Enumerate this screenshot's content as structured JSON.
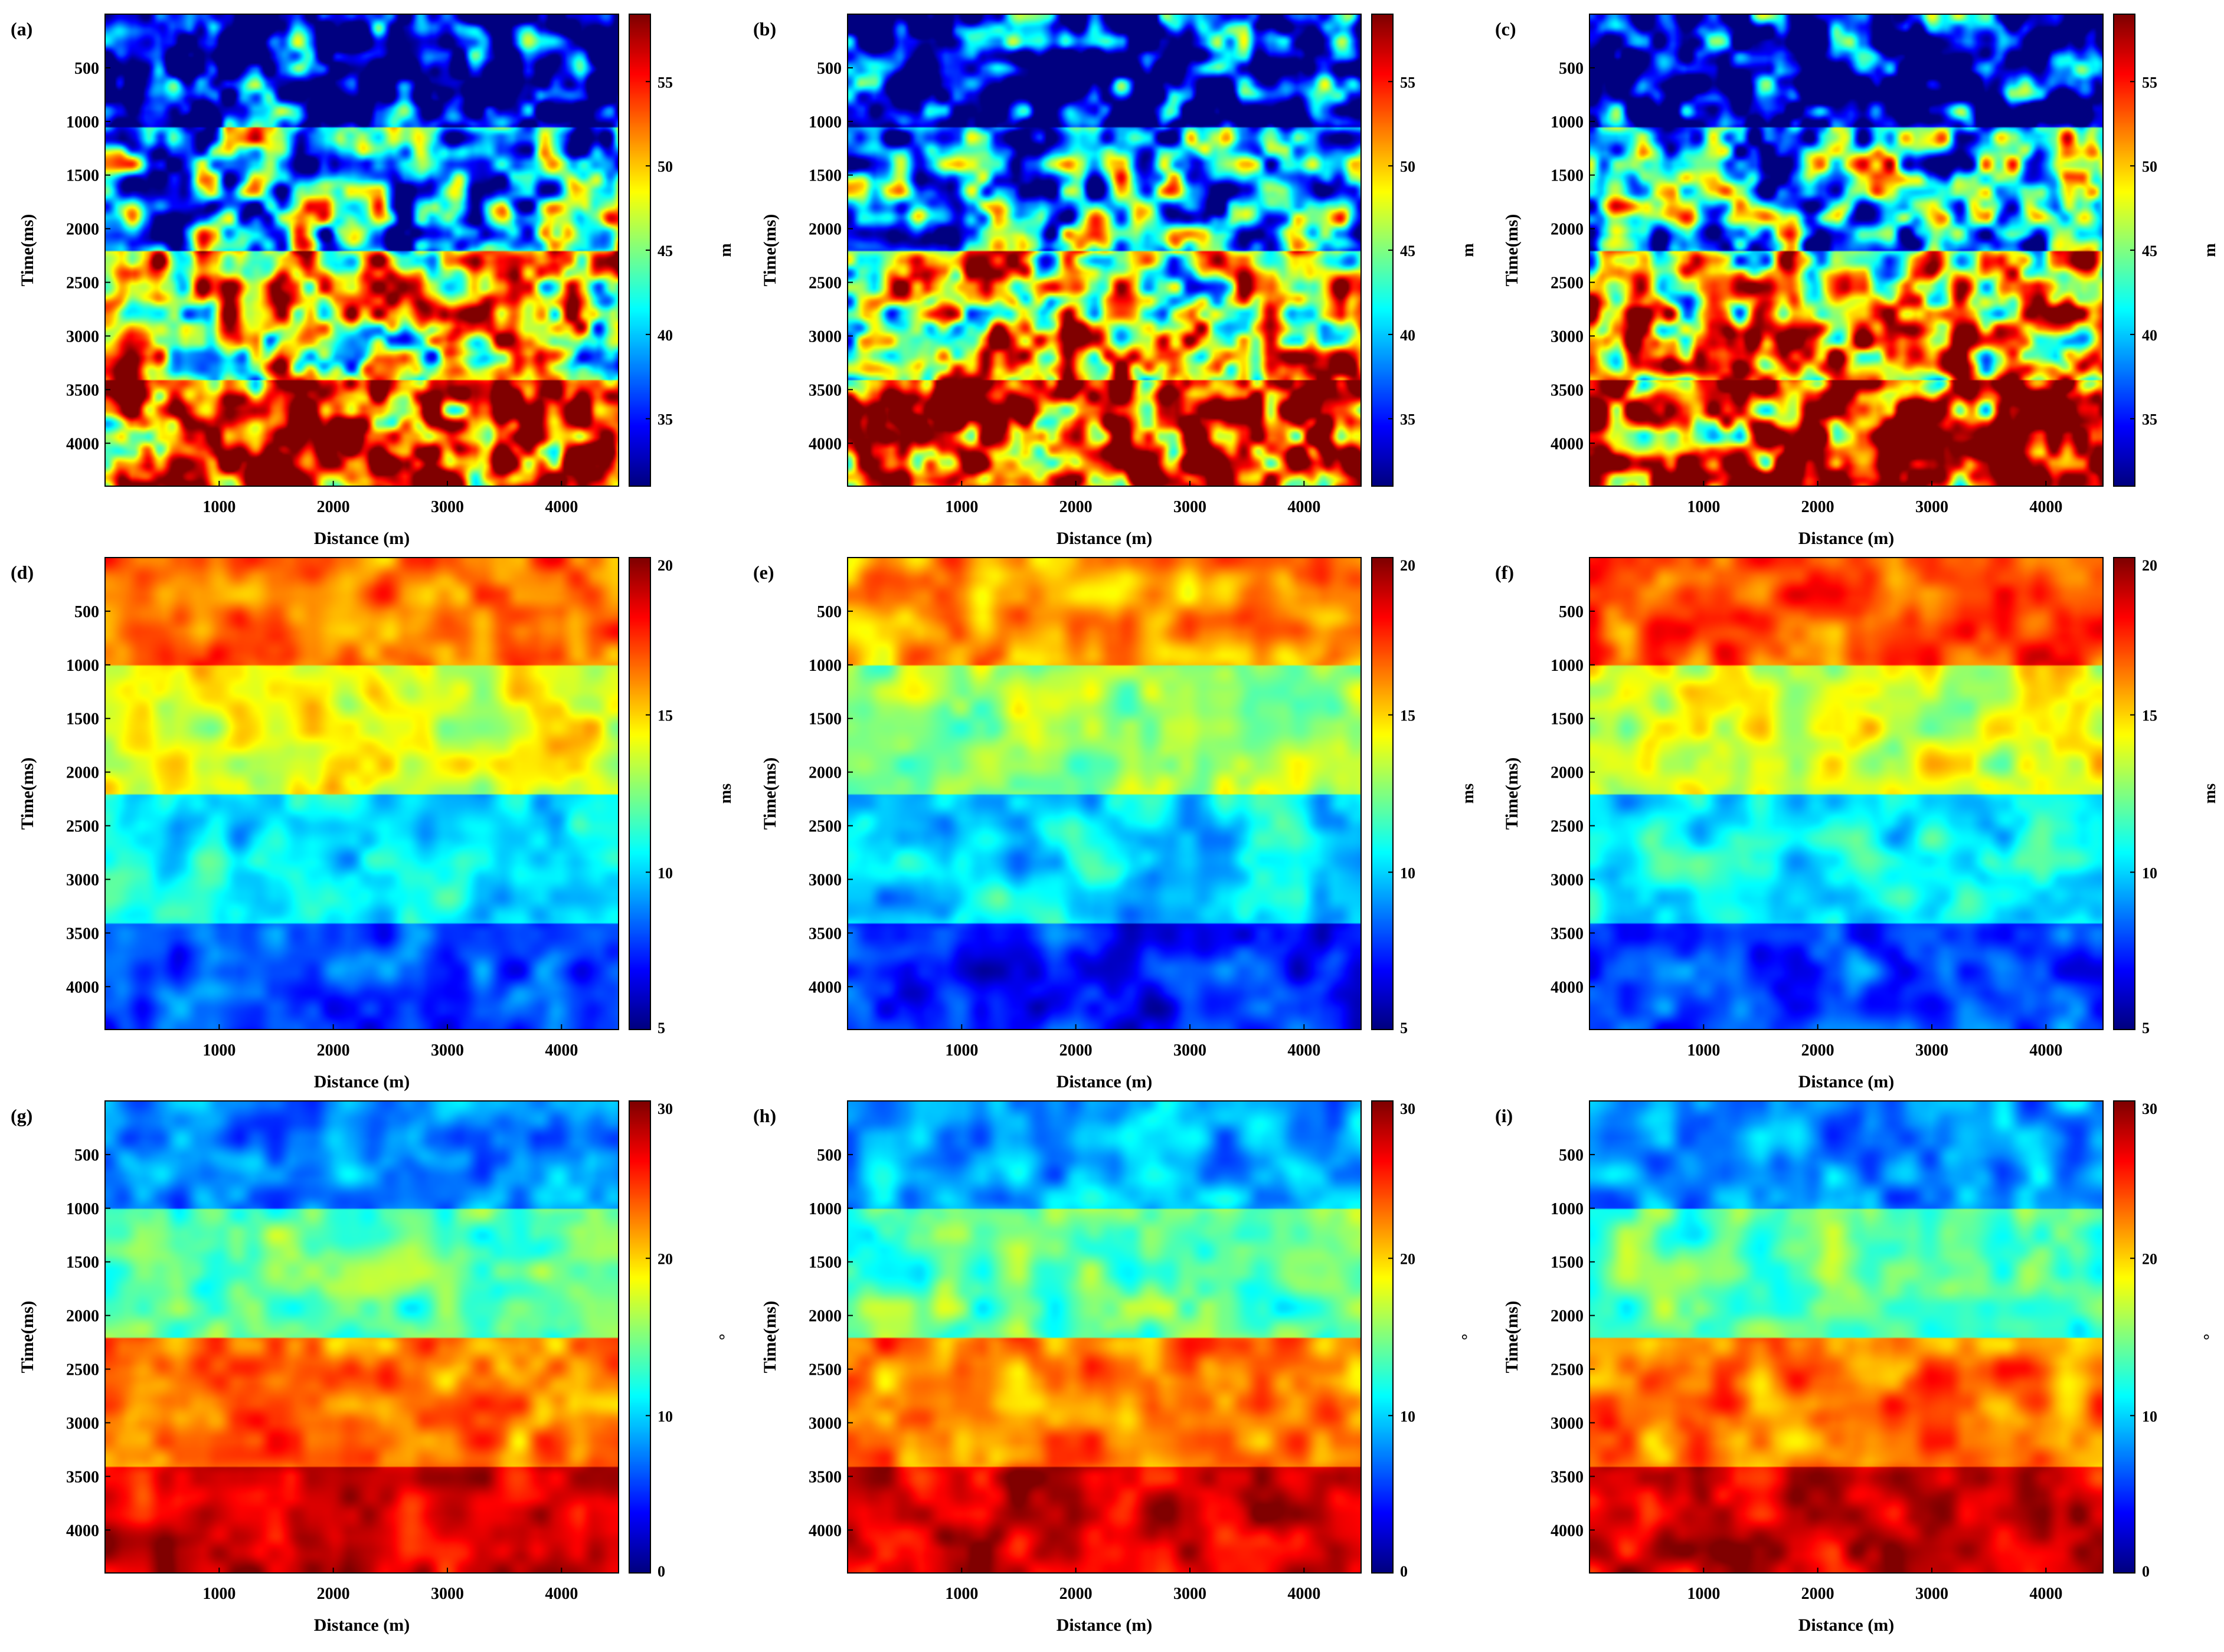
{
  "figure": {
    "panels": [
      {
        "letter": "(a)",
        "ylabel": "Time(ms)",
        "xlabel": "Distance (m)",
        "cbar_ticks": [
          "35",
          "40",
          "45",
          "50",
          "55"
        ],
        "cbar_unit": "m",
        "cbar_range": [
          31,
          59
        ],
        "bands": [
          32,
          38,
          45,
          52,
          56
        ],
        "noise": 12,
        "cell": 42,
        "seed": 11
      },
      {
        "letter": "(b)",
        "ylabel": "Time(ms)",
        "xlabel": "Distance (m)",
        "cbar_ticks": [
          "35",
          "40",
          "45",
          "50",
          "55"
        ],
        "cbar_unit": "m",
        "cbar_range": [
          31,
          59
        ],
        "bands": [
          32,
          37.5,
          44,
          51,
          56
        ],
        "noise": 12,
        "cell": 42,
        "seed": 23
      },
      {
        "letter": "(c)",
        "ylabel": "Time(ms)",
        "xlabel": "Distance (m)",
        "cbar_ticks": [
          "35",
          "40",
          "45",
          "50",
          "55"
        ],
        "cbar_unit": "m",
        "cbar_range": [
          31,
          59
        ],
        "bands": [
          32,
          38,
          45,
          52,
          56
        ],
        "noise": 12,
        "cell": 42,
        "seed": 37
      },
      {
        "letter": "(d)",
        "ylabel": "Time(ms)",
        "xlabel": "Distance (m)",
        "cbar_ticks": [
          "5",
          "10",
          "15",
          "20"
        ],
        "cbar_unit": "ms",
        "cbar_range": [
          5,
          20
        ],
        "bands": [
          16.5,
          14.0,
          10.5,
          8.0
        ],
        "noise": 1.4,
        "cell": 58,
        "seed": 41
      },
      {
        "letter": "(e)",
        "ylabel": "Time(ms)",
        "xlabel": "Distance (m)",
        "cbar_ticks": [
          "5",
          "10",
          "15",
          "20"
        ],
        "cbar_unit": "ms",
        "cbar_range": [
          5,
          20
        ],
        "bands": [
          15.8,
          13.0,
          10.2,
          7.3
        ],
        "noise": 1.4,
        "cell": 58,
        "seed": 53
      },
      {
        "letter": "(f)",
        "ylabel": "Time(ms)",
        "xlabel": "Distance (m)",
        "cbar_ticks": [
          "5",
          "10",
          "15",
          "20"
        ],
        "cbar_unit": "ms",
        "cbar_range": [
          5,
          20
        ],
        "bands": [
          17.0,
          14.0,
          10.5,
          7.9
        ],
        "noise": 1.4,
        "cell": 58,
        "seed": 67
      },
      {
        "letter": "(g)",
        "ylabel": "Time(ms)",
        "xlabel": "Distance (m)",
        "cbar_ticks": [
          "0",
          "10",
          "20",
          "30"
        ],
        "cbar_unit": "°",
        "cbar_range": [
          0,
          30
        ],
        "bands": [
          8,
          14,
          22.5,
          27.5
        ],
        "noise": 2.8,
        "cell": 58,
        "seed": 71
      },
      {
        "letter": "(h)",
        "ylabel": "Time(ms)",
        "xlabel": "Distance (m)",
        "cbar_ticks": [
          "0",
          "10",
          "20",
          "30"
        ],
        "cbar_unit": "°",
        "cbar_range": [
          0,
          30
        ],
        "bands": [
          8.5,
          14,
          22.5,
          27.5
        ],
        "noise": 2.8,
        "cell": 58,
        "seed": 83
      },
      {
        "letter": "(i)",
        "ylabel": "Time(ms)",
        "xlabel": "Distance (m)",
        "cbar_ticks": [
          "0",
          "10",
          "20",
          "30"
        ],
        "cbar_unit": "°",
        "cbar_range": [
          0,
          30
        ],
        "bands": [
          8,
          14,
          22.5,
          27.5
        ],
        "noise": 2.8,
        "cell": 58,
        "seed": 97
      }
    ],
    "y_ticks": [
      "500",
      "1000",
      "1500",
      "2000",
      "2500",
      "3000",
      "3500",
      "4000"
    ],
    "x_ticks": [
      "1000",
      "2000",
      "3000",
      "4000"
    ]
  },
  "chart_data": [
    {
      "panel": "(a)",
      "type": "heatmap",
      "xlabel": "Distance (m)",
      "ylabel": "Time(ms)",
      "xlim": [
        0,
        4500
      ],
      "ylim": [
        4400,
        0
      ],
      "colorbar_label": "m",
      "colorbar_range": [
        31,
        59
      ],
      "layers": [
        {
          "time_range": [
            0,
            1050
          ],
          "value": 32
        },
        {
          "time_range": [
            1050,
            2200
          ],
          "value": 41
        },
        {
          "time_range": [
            2200,
            3400
          ],
          "value": 50
        },
        {
          "time_range": [
            3400,
            4400
          ],
          "value": 56
        }
      ]
    },
    {
      "panel": "(b)",
      "type": "heatmap",
      "xlabel": "Distance (m)",
      "ylabel": "Time(ms)",
      "xlim": [
        0,
        4500
      ],
      "ylim": [
        4400,
        0
      ],
      "colorbar_label": "m",
      "colorbar_range": [
        31,
        59
      ],
      "layers": [
        {
          "time_range": [
            0,
            1050
          ],
          "value": 32
        },
        {
          "time_range": [
            1050,
            2200
          ],
          "value": 40
        },
        {
          "time_range": [
            2200,
            3400
          ],
          "value": 49
        },
        {
          "time_range": [
            3400,
            4400
          ],
          "value": 56
        }
      ]
    },
    {
      "panel": "(c)",
      "type": "heatmap",
      "xlabel": "Distance (m)",
      "ylabel": "Time(ms)",
      "xlim": [
        0,
        4500
      ],
      "ylim": [
        4400,
        0
      ],
      "colorbar_label": "m",
      "colorbar_range": [
        31,
        59
      ],
      "layers": [
        {
          "time_range": [
            0,
            1050
          ],
          "value": 32
        },
        {
          "time_range": [
            1050,
            2200
          ],
          "value": 41
        },
        {
          "time_range": [
            2200,
            3400
          ],
          "value": 50
        },
        {
          "time_range": [
            3400,
            4400
          ],
          "value": 56
        }
      ]
    },
    {
      "panel": "(d)",
      "type": "heatmap",
      "xlabel": "Distance (m)",
      "ylabel": "Time(ms)",
      "xlim": [
        0,
        4500
      ],
      "ylim": [
        4400,
        0
      ],
      "colorbar_label": "ms",
      "colorbar_range": [
        5,
        20
      ],
      "layers": [
        {
          "time_range": [
            0,
            1000
          ],
          "value": 16.5
        },
        {
          "time_range": [
            1000,
            2200
          ],
          "value": 14.0
        },
        {
          "time_range": [
            2200,
            3400
          ],
          "value": 10.5
        },
        {
          "time_range": [
            3400,
            4400
          ],
          "value": 8.0
        }
      ]
    },
    {
      "panel": "(e)",
      "type": "heatmap",
      "xlabel": "Distance (m)",
      "ylabel": "Time(ms)",
      "xlim": [
        0,
        4500
      ],
      "ylim": [
        4400,
        0
      ],
      "colorbar_label": "ms",
      "colorbar_range": [
        5,
        20
      ],
      "layers": [
        {
          "time_range": [
            0,
            1000
          ],
          "value": 15.8
        },
        {
          "time_range": [
            1000,
            2200
          ],
          "value": 13.0
        },
        {
          "time_range": [
            2200,
            3400
          ],
          "value": 10.2
        },
        {
          "time_range": [
            3400,
            4400
          ],
          "value": 7.3
        }
      ]
    },
    {
      "panel": "(f)",
      "type": "heatmap",
      "xlabel": "Distance (m)",
      "ylabel": "Time(ms)",
      "xlim": [
        0,
        4500
      ],
      "ylim": [
        4400,
        0
      ],
      "colorbar_label": "ms",
      "colorbar_range": [
        5,
        20
      ],
      "layers": [
        {
          "time_range": [
            0,
            1000
          ],
          "value": 17.0
        },
        {
          "time_range": [
            1000,
            2200
          ],
          "value": 14.0
        },
        {
          "time_range": [
            2200,
            3400
          ],
          "value": 10.5
        },
        {
          "time_range": [
            3400,
            4400
          ],
          "value": 7.9
        }
      ]
    },
    {
      "panel": "(g)",
      "type": "heatmap",
      "xlabel": "Distance (m)",
      "ylabel": "Time(ms)",
      "xlim": [
        0,
        4500
      ],
      "ylim": [
        4400,
        0
      ],
      "colorbar_label": "°",
      "colorbar_range": [
        0,
        30
      ],
      "layers": [
        {
          "time_range": [
            0,
            1000
          ],
          "value": 8
        },
        {
          "time_range": [
            1000,
            2200
          ],
          "value": 14
        },
        {
          "time_range": [
            2200,
            3400
          ],
          "value": 22.5
        },
        {
          "time_range": [
            3400,
            4400
          ],
          "value": 27.5
        }
      ]
    },
    {
      "panel": "(h)",
      "type": "heatmap",
      "xlabel": "Distance (m)",
      "ylabel": "Time(ms)",
      "xlim": [
        0,
        4500
      ],
      "ylim": [
        4400,
        0
      ],
      "colorbar_label": "°",
      "colorbar_range": [
        0,
        30
      ],
      "layers": [
        {
          "time_range": [
            0,
            1000
          ],
          "value": 8.5
        },
        {
          "time_range": [
            1000,
            2200
          ],
          "value": 14
        },
        {
          "time_range": [
            2200,
            3400
          ],
          "value": 22.5
        },
        {
          "time_range": [
            3400,
            4400
          ],
          "value": 27.5
        }
      ]
    },
    {
      "panel": "(i)",
      "type": "heatmap",
      "xlabel": "Distance (m)",
      "ylabel": "Time(ms)",
      "xlim": [
        0,
        4500
      ],
      "ylim": [
        4400,
        0
      ],
      "colorbar_label": "°",
      "colorbar_range": [
        0,
        30
      ],
      "layers": [
        {
          "time_range": [
            0,
            1000
          ],
          "value": 8
        },
        {
          "time_range": [
            1000,
            2200
          ],
          "value": 14
        },
        {
          "time_range": [
            2200,
            3400
          ],
          "value": 22.5
        },
        {
          "time_range": [
            3400,
            4400
          ],
          "value": 27.5
        }
      ]
    }
  ]
}
